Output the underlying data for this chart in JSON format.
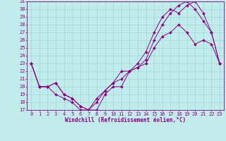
{
  "xlabel": "Windchill (Refroidissement éolien,°C)",
  "xlim": [
    -0.5,
    23.5
  ],
  "ylim": [
    17,
    31
  ],
  "xticks": [
    0,
    1,
    2,
    3,
    4,
    5,
    6,
    7,
    8,
    9,
    10,
    11,
    12,
    13,
    14,
    15,
    16,
    17,
    18,
    19,
    20,
    21,
    22,
    23
  ],
  "yticks": [
    17,
    18,
    19,
    20,
    21,
    22,
    23,
    24,
    25,
    26,
    27,
    28,
    29,
    30,
    31
  ],
  "bg_color": "#c2ecec",
  "line_color": "#880088",
  "grid_color": "#a0d8d8",
  "line1_x": [
    0,
    1,
    2,
    3,
    4,
    5,
    6,
    7,
    8,
    9,
    10,
    11,
    12,
    13,
    14,
    15,
    16,
    17,
    18,
    19,
    20,
    21,
    22,
    23
  ],
  "line1_y": [
    23,
    20,
    20,
    20.5,
    19,
    18.5,
    17.5,
    17,
    17,
    19,
    20,
    20,
    22,
    22.5,
    23,
    25,
    26.5,
    27,
    28,
    27,
    25.5,
    26,
    25.5,
    23
  ],
  "line2_x": [
    0,
    1,
    2,
    3,
    4,
    5,
    6,
    7,
    8,
    9,
    10,
    11,
    12,
    13,
    14,
    15,
    16,
    17,
    18,
    19,
    20,
    21,
    22,
    23
  ],
  "line2_y": [
    23,
    20,
    20,
    19,
    18.5,
    18,
    17,
    17,
    18.5,
    19.5,
    20.5,
    22,
    22,
    23,
    24.5,
    27,
    29,
    30,
    29.5,
    30.5,
    31,
    29.5,
    27,
    23
  ],
  "line3_x": [
    0,
    1,
    2,
    3,
    4,
    5,
    6,
    7,
    8,
    9,
    10,
    11,
    12,
    13,
    14,
    15,
    16,
    17,
    18,
    19,
    20,
    21,
    22,
    23
  ],
  "line3_y": [
    23,
    20,
    20,
    20.5,
    19,
    18.5,
    17.5,
    17,
    18,
    19.5,
    20.5,
    21,
    22,
    22.5,
    23.5,
    26,
    28,
    29.5,
    30.5,
    31,
    30,
    28.5,
    27,
    23
  ],
  "tick_fontsize": 5,
  "xlabel_fontsize": 5.5
}
